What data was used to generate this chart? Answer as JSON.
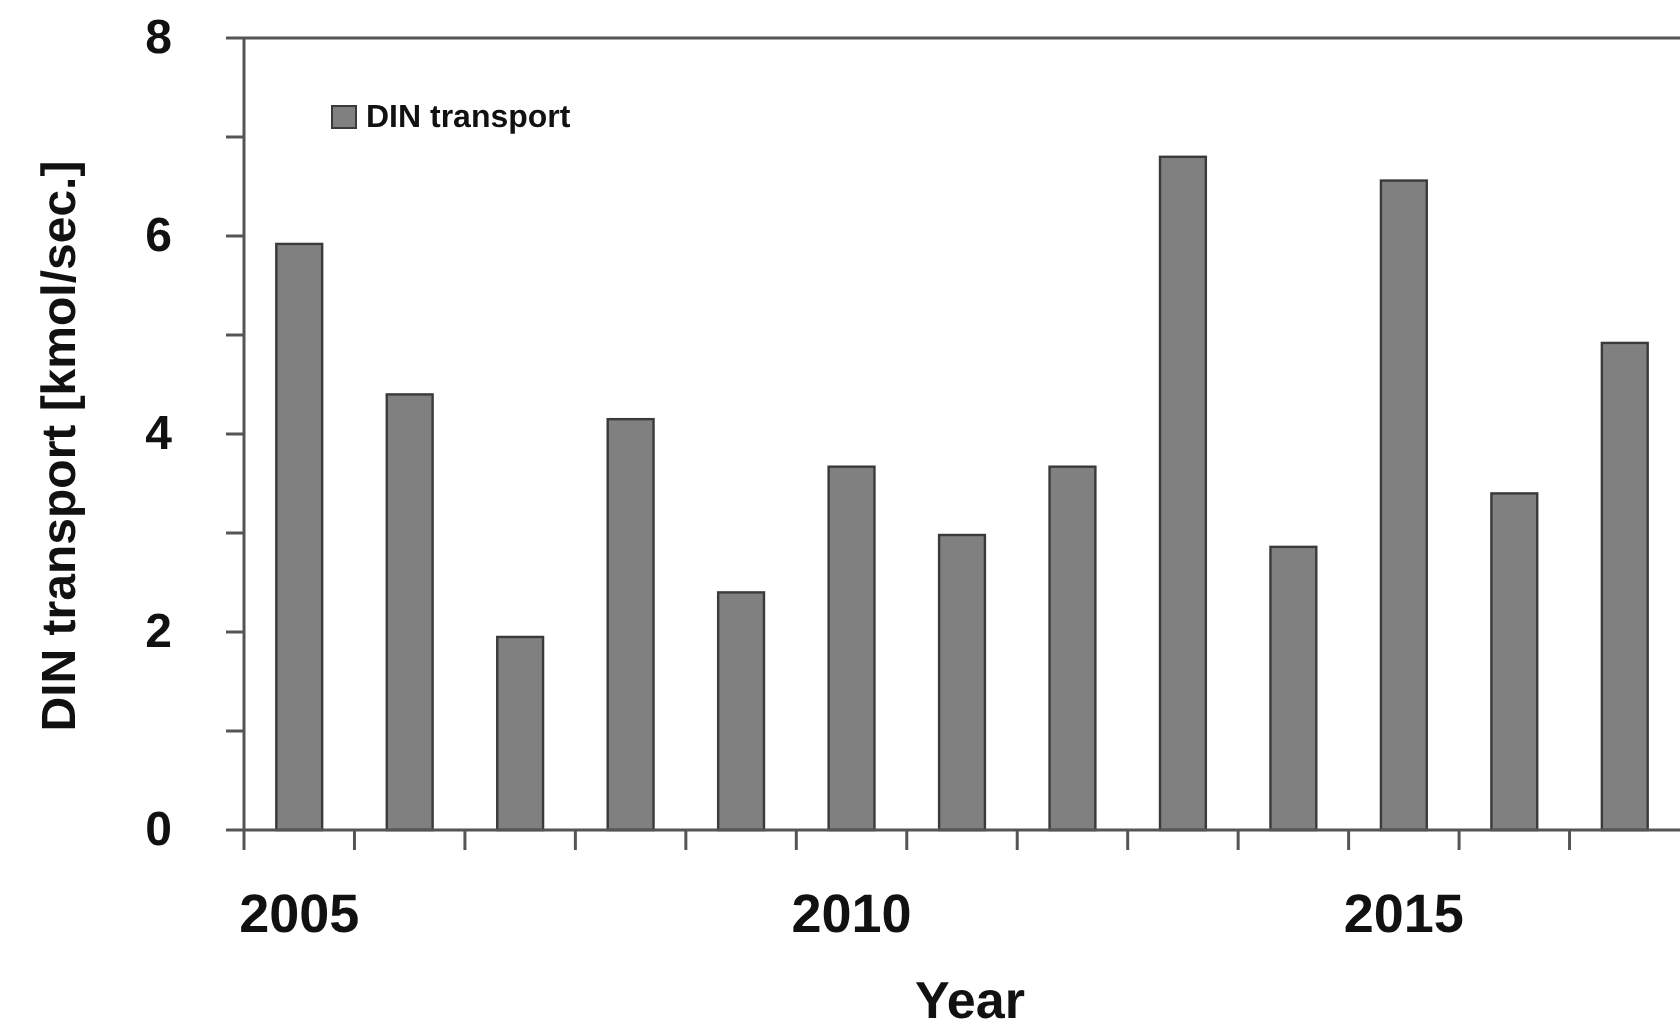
{
  "chart_data": {
    "type": "bar",
    "xlabel": "Year",
    "ylabel": "DIN transport [kmol/sec.]",
    "categories": [
      "2005",
      null,
      null,
      null,
      null,
      "2010",
      null,
      null,
      null,
      null,
      "2015",
      null,
      null
    ],
    "series": [
      {
        "name": "DIN transport",
        "color": "#808080",
        "values": [
          5.92,
          4.4,
          1.95,
          4.15,
          2.4,
          3.67,
          2.98,
          3.67,
          6.8,
          2.86,
          6.56,
          3.4,
          4.92
        ]
      }
    ],
    "ylim": [
      0,
      8
    ],
    "yticks": [
      0,
      {
        "value": 1,
        "label": null
      },
      2,
      {
        "value": 3,
        "label": null
      },
      4,
      {
        "value": 5,
        "label": null
      },
      6,
      {
        "value": 7,
        "label": null
      },
      8
    ],
    "legend": "top left"
  }
}
